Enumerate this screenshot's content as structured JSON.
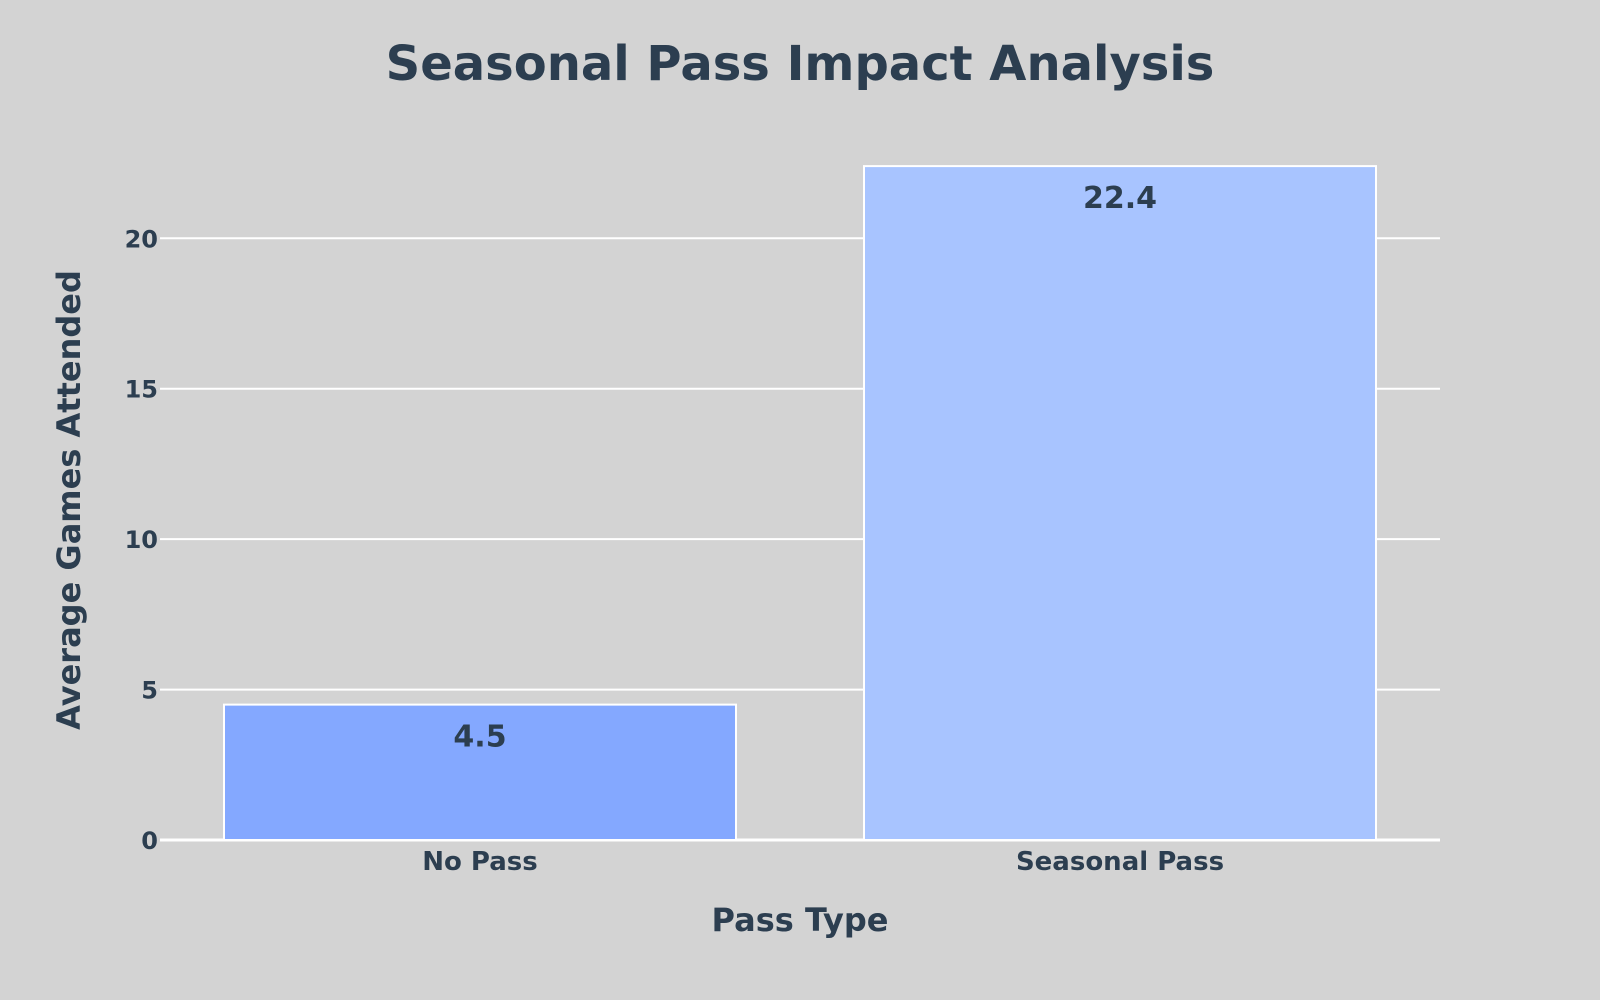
{
  "chart_data": {
    "type": "bar",
    "title": "Seasonal Pass Impact Analysis",
    "xlabel": "Pass Type",
    "ylabel": "Average Games Attended",
    "categories": [
      "No Pass",
      "Seasonal Pass"
    ],
    "values": [
      4.5,
      22.4
    ],
    "value_labels": [
      "4.5",
      "22.4"
    ],
    "ylim": [
      0,
      23.6
    ],
    "yticks": [
      0,
      5,
      10,
      15,
      20
    ],
    "grid": true,
    "legend": "none",
    "colors": {
      "background": "#d3d3d3",
      "text": "#2c3e50",
      "grid": "#ffffff",
      "bars": [
        "#84a8ff",
        "#a8c4ff"
      ],
      "bar_outline": "#ffffff"
    }
  }
}
